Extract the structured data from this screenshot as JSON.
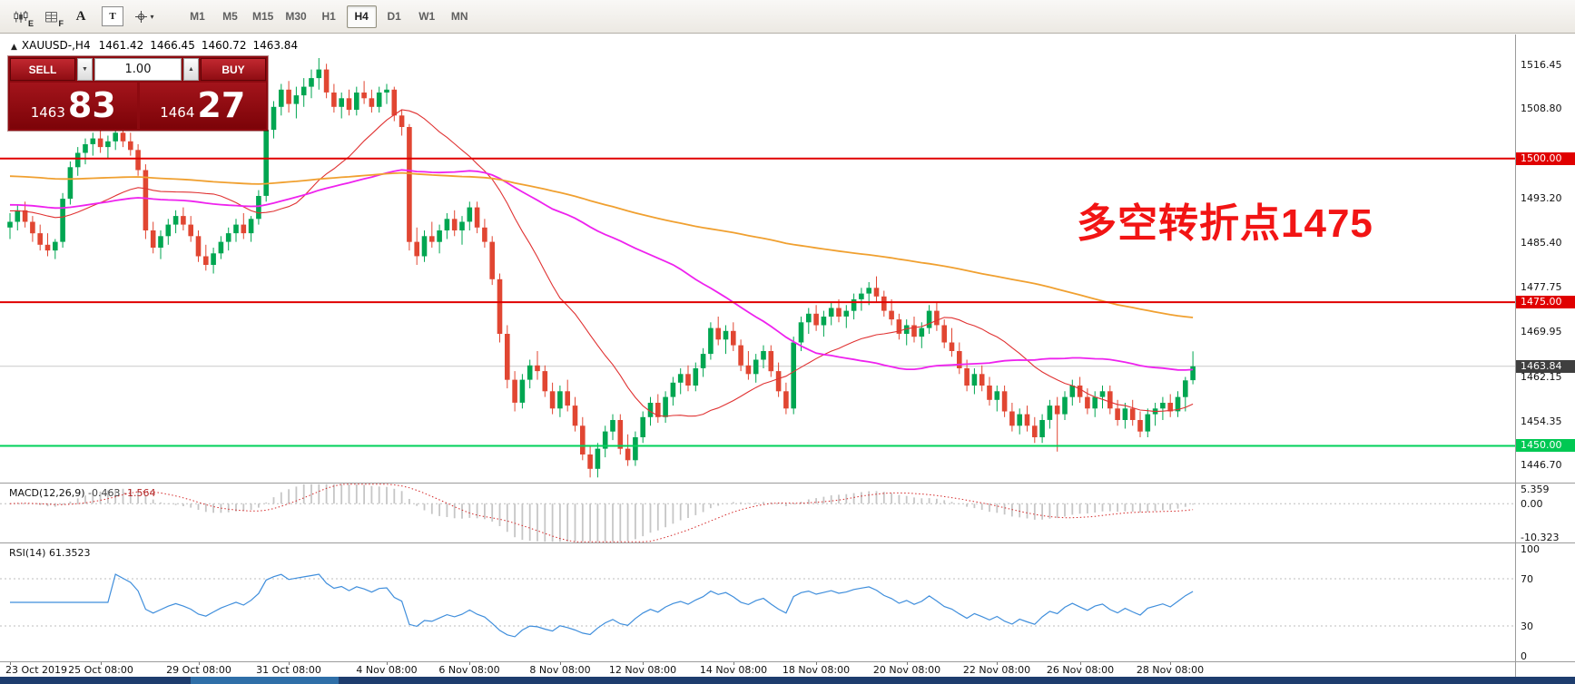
{
  "toolbar": {
    "icon1_sub": "E",
    "icon2_sub": "F",
    "icon3_label": "A",
    "icon4_label": "T",
    "icon5_caret": "▾",
    "timeframes": [
      "M1",
      "M5",
      "M15",
      "M30",
      "H1",
      "H4",
      "D1",
      "W1",
      "MN"
    ],
    "active_timeframe": "H4"
  },
  "chart_header": {
    "toggle_glyph": "▲",
    "title": "XAUUSD-,H4",
    "open": "1461.42",
    "high": "1466.45",
    "low": "1460.72",
    "close": "1463.84"
  },
  "trade_panel": {
    "sell_label": "SELL",
    "buy_label": "BUY",
    "volume": "1.00",
    "volume_down_glyph": "▼",
    "volume_up_glyph": "▲",
    "sell_price_main": "1463",
    "sell_price_big": "83",
    "buy_price_main": "1464",
    "buy_price_big": "27"
  },
  "annotation": {
    "text": "多空转折点1475",
    "color": "#f21414"
  },
  "price_scale": {
    "labels": [
      "1516.45",
      "1508.80",
      "1493.20",
      "1485.40",
      "1477.75",
      "1469.95",
      "1462.15",
      "1454.35",
      "1446.70"
    ],
    "tags": [
      {
        "label": "1500.00",
        "price": 1500.0,
        "color": "#e00000"
      },
      {
        "label": "1475.00",
        "price": 1475.0,
        "color": "#e00000"
      },
      {
        "label": "1463.84",
        "price": 1463.84,
        "color": "#3f3f3f"
      },
      {
        "label": "1450.00",
        "price": 1450.0,
        "color": "#00c853"
      }
    ]
  },
  "macd_panel": {
    "label": "MACD(12,26,9)",
    "value_main": "-0.463",
    "value_signal": "-1.564",
    "scale": [
      {
        "label": "5.359",
        "value": 5.359
      },
      {
        "label": "0.00",
        "value": 0.0
      },
      {
        "label": "-10.323",
        "value": -10.323
      }
    ]
  },
  "rsi_panel": {
    "label": "RSI(14)",
    "value": "61.3523",
    "scale": [
      {
        "label": "100",
        "value": 100
      },
      {
        "label": "70",
        "value": 70
      },
      {
        "label": "30",
        "value": 30
      },
      {
        "label": "0",
        "value": 0
      }
    ]
  },
  "time_axis": {
    "ticks": [
      {
        "label": "23 Oct 2019",
        "i": 0
      },
      {
        "label": "25 Oct 08:00",
        "i": 12
      },
      {
        "label": "29 Oct 08:00",
        "i": 25
      },
      {
        "label": "31 Oct 08:00",
        "i": 37
      },
      {
        "label": "4 Nov 08:00",
        "i": 50
      },
      {
        "label": "6 Nov 08:00",
        "i": 61
      },
      {
        "label": "8 Nov 08:00",
        "i": 73
      },
      {
        "label": "12 Nov 08:00",
        "i": 84
      },
      {
        "label": "14 Nov 08:00",
        "i": 96
      },
      {
        "label": "18 Nov 08:00",
        "i": 107
      },
      {
        "label": "20 Nov 08:00",
        "i": 119
      },
      {
        "label": "22 Nov 08:00",
        "i": 131
      },
      {
        "label": "26 Nov 08:00",
        "i": 142
      },
      {
        "label": "28 Nov 08:00",
        "i": 154
      }
    ]
  },
  "chart_data": {
    "type": "candlestick",
    "title": "XAUUSD- H4 with MA lines, MACD(12,26,9), RSI(14)",
    "symbol": "XAUUSD-",
    "timeframe": "H4",
    "price_axis": {
      "min": 1443.6,
      "max": 1521.6
    },
    "current_price": 1463.84,
    "up_color": "#00a651",
    "down_color": "#e14632",
    "hlines": [
      {
        "price": 1500.0,
        "color": "#e00000",
        "width": 2
      },
      {
        "price": 1475.0,
        "color": "#e00000",
        "width": 2
      },
      {
        "price": 1450.0,
        "color": "#00d05a",
        "width": 2
      }
    ],
    "moving_averages": [
      {
        "period": 21,
        "color": "#e03232",
        "width": 1.1,
        "pad": 1491
      },
      {
        "period": 55,
        "color": "#ee22ee",
        "width": 1.8,
        "pad": 1492
      },
      {
        "period": 130,
        "color": "#f0a030",
        "width": 1.8,
        "pad": 1497
      }
    ],
    "macd_axis": {
      "max": 5.359,
      "min": -10.323
    },
    "rsi_axis": {
      "max": 100,
      "min": 0,
      "levels": [
        70,
        30
      ]
    },
    "candles": [
      [
        1488,
        1490.5,
        1486,
        1489
      ],
      [
        1489,
        1492,
        1487.5,
        1491
      ],
      [
        1491,
        1492.5,
        1488,
        1489
      ],
      [
        1489,
        1490,
        1485.5,
        1487
      ],
      [
        1487,
        1488.5,
        1484,
        1485
      ],
      [
        1485,
        1487,
        1483,
        1484
      ],
      [
        1484,
        1486,
        1482.5,
        1485.5
      ],
      [
        1485.5,
        1494,
        1484.5,
        1493
      ],
      [
        1493,
        1499.5,
        1492,
        1498.5
      ],
      [
        1498.5,
        1502,
        1497,
        1501
      ],
      [
        1501,
        1503.5,
        1499,
        1502.5
      ],
      [
        1502.5,
        1504.5,
        1500.5,
        1503.5
      ],
      [
        1503.5,
        1505,
        1501,
        1502
      ],
      [
        1502,
        1504,
        1500,
        1503
      ],
      [
        1503,
        1505.5,
        1501.5,
        1504.5
      ],
      [
        1504.5,
        1506,
        1502,
        1503
      ],
      [
        1503,
        1504.5,
        1500.5,
        1501.5
      ],
      [
        1501.5,
        1502.5,
        1497,
        1498
      ],
      [
        1498,
        1499,
        1486,
        1487.5
      ],
      [
        1487.5,
        1489,
        1483.5,
        1484.5
      ],
      [
        1484.5,
        1487.5,
        1482.5,
        1486.5
      ],
      [
        1486.5,
        1489.5,
        1485,
        1488.5
      ],
      [
        1488.5,
        1491,
        1487,
        1490
      ],
      [
        1490,
        1491.5,
        1487.5,
        1488.5
      ],
      [
        1488.5,
        1490,
        1485.5,
        1486.5
      ],
      [
        1486.5,
        1487.5,
        1482,
        1483
      ],
      [
        1483,
        1485,
        1480.5,
        1481.5
      ],
      [
        1481.5,
        1484.5,
        1480,
        1483.5
      ],
      [
        1483.5,
        1486.5,
        1482.5,
        1485.5
      ],
      [
        1485.5,
        1488,
        1484,
        1487
      ],
      [
        1487,
        1489.5,
        1485.5,
        1488.5
      ],
      [
        1488.5,
        1490.5,
        1486,
        1487
      ],
      [
        1487,
        1490,
        1485.5,
        1489.5
      ],
      [
        1489.5,
        1494.5,
        1488.5,
        1493.5
      ],
      [
        1493.5,
        1506,
        1492.5,
        1505
      ],
      [
        1505,
        1510,
        1503.5,
        1509
      ],
      [
        1509,
        1513,
        1507.5,
        1512
      ],
      [
        1512,
        1513.5,
        1508,
        1509.5
      ],
      [
        1509.5,
        1512.5,
        1507,
        1511
      ],
      [
        1511,
        1514,
        1509,
        1512.5
      ],
      [
        1512.5,
        1515.5,
        1510.5,
        1514
      ],
      [
        1514,
        1517.5,
        1512,
        1515.5
      ],
      [
        1515.5,
        1516.5,
        1510.5,
        1511.5
      ],
      [
        1511.5,
        1513,
        1508,
        1509
      ],
      [
        1509,
        1511.5,
        1507,
        1510.5
      ],
      [
        1510.5,
        1512,
        1507.5,
        1508.5
      ],
      [
        1508.5,
        1512.5,
        1507.5,
        1511.5
      ],
      [
        1511.5,
        1513.5,
        1509.5,
        1510.5
      ],
      [
        1510.5,
        1512,
        1508,
        1509
      ],
      [
        1509,
        1512.5,
        1508,
        1511.5
      ],
      [
        1511.5,
        1513,
        1509.5,
        1512
      ],
      [
        1512,
        1512.5,
        1506.5,
        1507.5
      ],
      [
        1507.5,
        1508.5,
        1504,
        1505.5
      ],
      [
        1505.5,
        1506,
        1484,
        1485.5
      ],
      [
        1485.5,
        1488,
        1481.5,
        1483
      ],
      [
        1483,
        1487.5,
        1482,
        1486.5
      ],
      [
        1486.5,
        1489,
        1484.5,
        1485.5
      ],
      [
        1485.5,
        1488.5,
        1483.5,
        1487.5
      ],
      [
        1487.5,
        1490.5,
        1486,
        1489.5
      ],
      [
        1489.5,
        1491,
        1486.5,
        1487.5
      ],
      [
        1487.5,
        1490,
        1485,
        1489
      ],
      [
        1489,
        1492.5,
        1487.5,
        1491.5
      ],
      [
        1491.5,
        1492.5,
        1487,
        1488
      ],
      [
        1488,
        1489.5,
        1484.5,
        1485.5
      ],
      [
        1485.5,
        1486.5,
        1478,
        1479
      ],
      [
        1479,
        1480,
        1468,
        1469.5
      ],
      [
        1469.5,
        1471,
        1460,
        1461.5
      ],
      [
        1461.5,
        1463,
        1456,
        1457.5
      ],
      [
        1457.5,
        1462.5,
        1456.5,
        1461.5
      ],
      [
        1461.5,
        1465,
        1460,
        1464
      ],
      [
        1464,
        1466.5,
        1461.5,
        1463
      ],
      [
        1463,
        1464,
        1458.5,
        1459.5
      ],
      [
        1459.5,
        1461,
        1455.5,
        1456.5
      ],
      [
        1456.5,
        1460.5,
        1455,
        1459.5
      ],
      [
        1459.5,
        1461.5,
        1456,
        1457
      ],
      [
        1457,
        1458.5,
        1452.5,
        1453.5
      ],
      [
        1453.5,
        1455,
        1447.5,
        1448.5
      ],
      [
        1448.5,
        1450,
        1444.5,
        1446
      ],
      [
        1446,
        1450.5,
        1444.5,
        1449.5
      ],
      [
        1449.5,
        1453.5,
        1448,
        1452.5
      ],
      [
        1452.5,
        1455.5,
        1451,
        1454.5
      ],
      [
        1454.5,
        1455.5,
        1448.5,
        1449.5
      ],
      [
        1449.5,
        1452,
        1446.5,
        1447.5
      ],
      [
        1447.5,
        1452.5,
        1446.5,
        1451.5
      ],
      [
        1451.5,
        1456,
        1450.5,
        1455
      ],
      [
        1455,
        1458.5,
        1453.5,
        1457.5
      ],
      [
        1457.5,
        1459,
        1454,
        1455
      ],
      [
        1455,
        1459.5,
        1454,
        1458.5
      ],
      [
        1458.5,
        1462,
        1457,
        1461
      ],
      [
        1461,
        1463.5,
        1459,
        1462.5
      ],
      [
        1462.5,
        1464,
        1459.5,
        1460.5
      ],
      [
        1460.5,
        1464.5,
        1459.5,
        1463.5
      ],
      [
        1463.5,
        1467,
        1462,
        1466
      ],
      [
        1466,
        1471.5,
        1465,
        1470.5
      ],
      [
        1470.5,
        1472.5,
        1467.5,
        1468.5
      ],
      [
        1468.5,
        1471,
        1466,
        1470
      ],
      [
        1470,
        1471.5,
        1466.5,
        1467.5
      ],
      [
        1467.5,
        1468.5,
        1463,
        1464
      ],
      [
        1464,
        1466.5,
        1461.5,
        1462.5
      ],
      [
        1462.5,
        1466,
        1461,
        1465
      ],
      [
        1465,
        1467.5,
        1463.5,
        1466.5
      ],
      [
        1466.5,
        1467.5,
        1462,
        1463
      ],
      [
        1463,
        1464.5,
        1458.5,
        1459.5
      ],
      [
        1459.5,
        1461,
        1455.5,
        1456.5
      ],
      [
        1456.5,
        1469,
        1455.5,
        1468
      ],
      [
        1468,
        1472.5,
        1466.5,
        1471.5
      ],
      [
        1471.5,
        1474,
        1469.5,
        1473
      ],
      [
        1473,
        1474.5,
        1470,
        1471
      ],
      [
        1471,
        1473.5,
        1469,
        1472.5
      ],
      [
        1472.5,
        1475,
        1471,
        1474
      ],
      [
        1474,
        1475.5,
        1471.5,
        1472.5
      ],
      [
        1472.5,
        1474.5,
        1470.5,
        1473.5
      ],
      [
        1473.5,
        1476.5,
        1472,
        1475.5
      ],
      [
        1475.5,
        1477.5,
        1473.5,
        1476.5
      ],
      [
        1476.5,
        1478.5,
        1474.5,
        1477.5
      ],
      [
        1477.5,
        1479.5,
        1475,
        1476
      ],
      [
        1476,
        1477,
        1472.5,
        1473.5
      ],
      [
        1473.5,
        1475.5,
        1471,
        1472
      ],
      [
        1472,
        1473,
        1468.5,
        1469.5
      ],
      [
        1469.5,
        1472,
        1467.5,
        1471
      ],
      [
        1471,
        1472.5,
        1468,
        1469
      ],
      [
        1469,
        1471.5,
        1467,
        1470.5
      ],
      [
        1470.5,
        1474.5,
        1469.5,
        1473.5
      ],
      [
        1473.5,
        1475,
        1470,
        1471
      ],
      [
        1471,
        1472,
        1467,
        1468
      ],
      [
        1468,
        1470.5,
        1465.5,
        1466.5
      ],
      [
        1466.5,
        1468,
        1462.5,
        1463.5
      ],
      [
        1463.5,
        1465,
        1459.5,
        1460.5
      ],
      [
        1460.5,
        1463.5,
        1459,
        1462.5
      ],
      [
        1462.5,
        1464,
        1459.5,
        1460.5
      ],
      [
        1460.5,
        1462,
        1457,
        1458
      ],
      [
        1458,
        1460.5,
        1456,
        1459.5
      ],
      [
        1459.5,
        1460.5,
        1455,
        1456
      ],
      [
        1456,
        1457.5,
        1452.5,
        1453.5
      ],
      [
        1453.5,
        1456.5,
        1452,
        1455.5
      ],
      [
        1455.5,
        1457,
        1452.5,
        1453.5
      ],
      [
        1453.5,
        1455,
        1450.5,
        1451.5
      ],
      [
        1451.5,
        1455.5,
        1450.5,
        1454.5
      ],
      [
        1454.5,
        1458,
        1453,
        1457
      ],
      [
        1457,
        1458.5,
        1449,
        1455.5
      ],
      [
        1455.5,
        1459.5,
        1454.5,
        1458.5
      ],
      [
        1458.5,
        1461.5,
        1457,
        1460.5
      ],
      [
        1460.5,
        1462,
        1457.5,
        1458.5
      ],
      [
        1458.5,
        1460,
        1455.5,
        1456.5
      ],
      [
        1456.5,
        1459.5,
        1455,
        1458.5
      ],
      [
        1458.5,
        1460.5,
        1456.5,
        1459.5
      ],
      [
        1459.5,
        1460.5,
        1455.5,
        1456.5
      ],
      [
        1456.5,
        1458,
        1453.5,
        1454.5
      ],
      [
        1454.5,
        1457.5,
        1453,
        1456.5
      ],
      [
        1456.5,
        1458,
        1453.5,
        1454.5
      ],
      [
        1454.5,
        1456,
        1451.5,
        1452.5
      ],
      [
        1452.5,
        1456.5,
        1451.5,
        1455.5
      ],
      [
        1455.5,
        1457.5,
        1453.5,
        1456.5
      ],
      [
        1456.5,
        1458.5,
        1454.5,
        1457.5
      ],
      [
        1457.5,
        1459,
        1455,
        1456
      ],
      [
        1456,
        1459.5,
        1455,
        1458.5
      ],
      [
        1458.5,
        1462,
        1456,
        1461.4
      ],
      [
        1461.42,
        1466.45,
        1460.72,
        1463.84
      ]
    ]
  }
}
